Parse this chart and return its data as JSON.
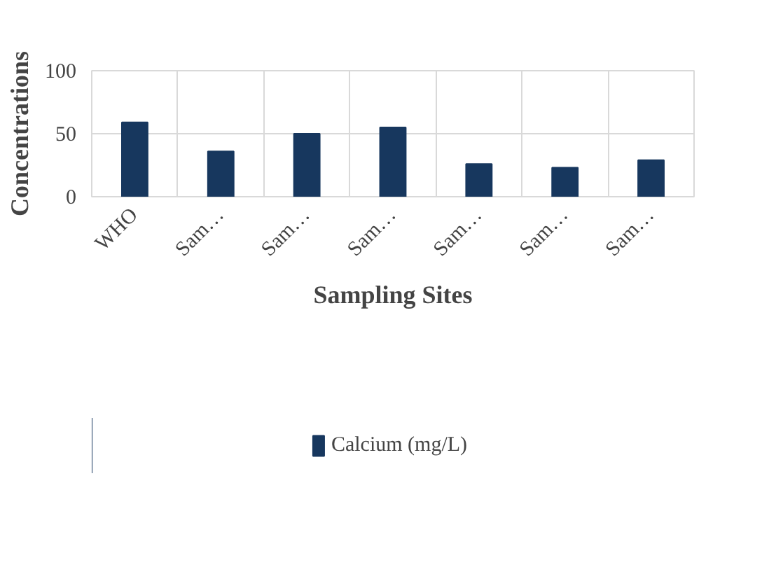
{
  "chart_data": {
    "type": "bar",
    "xlabel": "Sampling Sites",
    "ylabel": "Concentrations",
    "categories": [
      "WHO",
      "Sam…",
      "Sam…",
      "Sam…",
      "Sam…",
      "Sam…",
      "Sam…"
    ],
    "series": [
      {
        "name": "Calcium (mg/L)",
        "color": "#17375e",
        "values": [
          59,
          36,
          50,
          55,
          26,
          23,
          29
        ]
      }
    ],
    "ylim": [
      0,
      100
    ],
    "yticks": [
      0,
      50,
      100
    ],
    "grid": true,
    "legend": "bottom"
  }
}
